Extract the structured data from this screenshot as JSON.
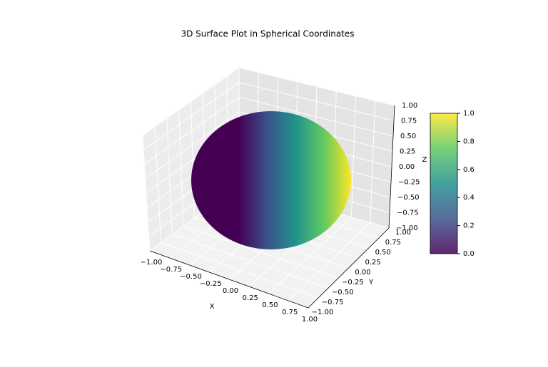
{
  "chart_data": {
    "type": "surface",
    "title": "3D Surface Plot in Spherical Coordinates",
    "xlabel": "X",
    "ylabel": "Y",
    "zlabel": "Z",
    "xlim": [
      -1,
      1
    ],
    "ylim": [
      -1,
      1
    ],
    "zlim": [
      -1,
      1
    ],
    "xticks": [
      {
        "value": -1,
        "label": "−1.00"
      },
      {
        "value": -0.75,
        "label": "−0.75"
      },
      {
        "value": -0.5,
        "label": "−0.50"
      },
      {
        "value": -0.25,
        "label": "−0.25"
      },
      {
        "value": 0,
        "label": "0.00"
      },
      0.25,
      {
        "value": 0.5,
        "label": "0.50"
      },
      0.75,
      {
        "value": 1,
        "label": "1.00"
      }
    ],
    "yticks": [
      {
        "value": -1,
        "label": "−1.00"
      },
      {
        "value": -0.75,
        "label": "−0.75"
      },
      {
        "value": -0.5,
        "label": "−0.50"
      },
      {
        "value": -0.25,
        "label": "−0.25"
      },
      {
        "value": 0,
        "label": "0.00"
      },
      0.25,
      {
        "value": 0.5,
        "label": "0.50"
      },
      0.75,
      {
        "value": 1,
        "label": "1.00"
      }
    ],
    "zticks": [
      {
        "value": -1,
        "label": "−1.00"
      },
      {
        "value": -0.75,
        "label": "−0.75"
      },
      {
        "value": -0.5,
        "label": "−0.50"
      },
      {
        "value": -0.25,
        "label": "−0.25"
      },
      {
        "value": 0,
        "label": "0.00"
      },
      0.25,
      {
        "value": 0.5,
        "label": "0.50"
      },
      0.75,
      {
        "value": 1,
        "label": "1.00"
      }
    ],
    "colormap": [
      "#440154",
      "#3b528b",
      "#21918c",
      "#5ec962",
      "#fde725"
    ],
    "clim": [
      0,
      1
    ],
    "cticks": [
      {
        "value": 0,
        "label": "0.0"
      },
      0.2,
      0.4,
      0.6,
      0.8,
      {
        "value": 1,
        "label": "1.0"
      }
    ]
  }
}
